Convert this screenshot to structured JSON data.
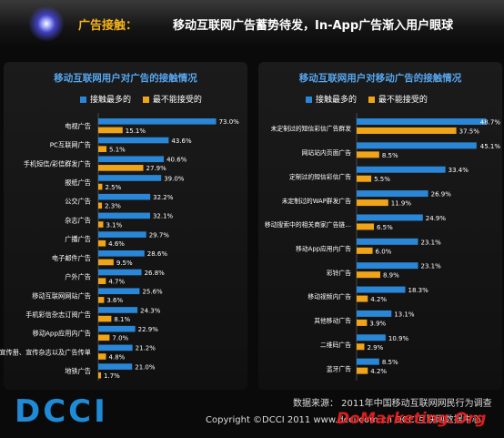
{
  "header": {
    "title_key": "广告接触：",
    "title_rest": "移动互联网广告蓄势待发，In-App广告渐入用户眼球"
  },
  "footer": {
    "source": "数据来源：  2011年中国移动互联网网民行为调查",
    "copyright": "Copyright ©DCCI 2011   www.dcci.com.cn   DCCI互联网数据中心",
    "brand": "DCCI",
    "watermark": "DoMarketing.Org"
  },
  "colors": {
    "accepted": "#2a86d6",
    "unacceptable": "#f0a418",
    "title": "#56a6ee"
  },
  "chart_data": [
    {
      "type": "bar",
      "orientation": "horizontal",
      "title": "移动互联网用户对广告的接触情况",
      "legend_placement": "top",
      "categories": [
        "电视广告",
        "PC互联网广告",
        "手机短信/彩信群发广告",
        "报纸广告",
        "公交广告",
        "杂志广告",
        "广播广告",
        "电子邮件广告",
        "户外广告",
        "移动互联网网站广告",
        "手机彩信杂志订阅广告",
        "移动App应用内广告",
        "宣传册、宣传杂志以及广告传单",
        "地铁广告"
      ],
      "series": [
        {
          "name": "接触最多的",
          "values": [
            73.0,
            43.6,
            40.6,
            39.0,
            32.2,
            32.1,
            29.7,
            28.6,
            26.8,
            25.6,
            24.3,
            22.9,
            21.2,
            21.0
          ],
          "labels": [
            "73.0%",
            "43.6%",
            "40.6%",
            "39.0%",
            "32.2%",
            "32.1%",
            "29.7%",
            "28.6%",
            "26.8%",
            "25.6%",
            "24.3%",
            "22.9%",
            "21.2%",
            "21.0%"
          ]
        },
        {
          "name": "最不能接受的",
          "values": [
            15.1,
            5.1,
            27.9,
            2.5,
            2.3,
            3.1,
            4.6,
            9.5,
            4.7,
            3.6,
            8.1,
            7.0,
            4.8,
            1.7
          ],
          "labels": [
            "15.1%",
            "5.1%",
            "27.9%",
            "2.5%",
            "2.3%",
            "3.1%",
            "4.6%",
            "9.5%",
            "4.7%",
            "3.6%",
            "8.1%",
            "7.0%",
            "4.8%",
            "1.7%"
          ]
        }
      ],
      "xlim": [
        0,
        80
      ]
    },
    {
      "type": "bar",
      "orientation": "horizontal",
      "title": "移动互联网用户对移动广告的接触情况",
      "legend_placement": "top",
      "categories": [
        "未定制过的短信彩信广告群发",
        "网站站内页面广告",
        "定制过的短信彩信广告",
        "未定制过的WAP群发广告",
        "移动搜索中的相关商家广告链…",
        "移动App应用内广告",
        "彩铃广告",
        "移动视频内广告",
        "其他移动广告",
        "二维码广告",
        "蓝牙广告"
      ],
      "series": [
        {
          "name": "接触最多的",
          "values": [
            48.7,
            45.1,
            33.4,
            26.9,
            24.9,
            23.1,
            23.1,
            18.3,
            13.1,
            10.9,
            8.5
          ],
          "labels": [
            "48.7%",
            "45.1%",
            "33.4%",
            "26.9%",
            "24.9%",
            "23.1%",
            "23.1%",
            "18.3%",
            "13.1%",
            "10.9%",
            "8.5%"
          ]
        },
        {
          "name": "最不能接受的",
          "values": [
            37.5,
            8.5,
            5.5,
            11.9,
            6.5,
            6.0,
            8.9,
            4.2,
            3.9,
            2.9,
            4.2
          ],
          "labels": [
            "37.5%",
            "8.5%",
            "5.5%",
            "11.9%",
            "6.5%",
            "6.0%",
            "8.9%",
            "4.2%",
            "3.9%",
            "2.9%",
            "4.2%"
          ]
        }
      ],
      "xlim": [
        0,
        52
      ]
    }
  ]
}
